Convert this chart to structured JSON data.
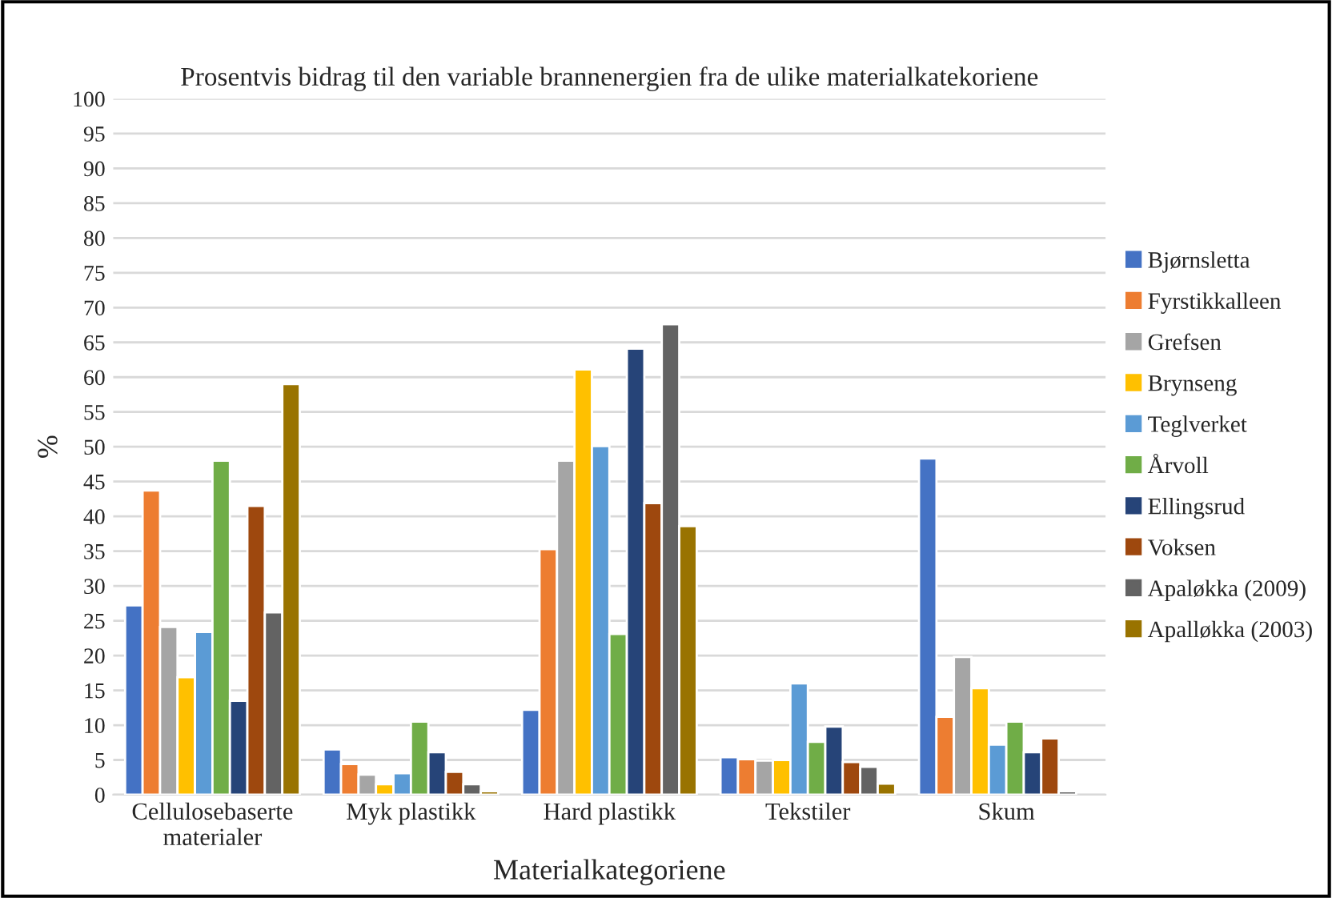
{
  "chart_data": {
    "type": "bar",
    "title": "Prosentvis bidrag til den variable brannenergien fra de ulike materialkatekoriene",
    "xlabel": "Materialkategoriene",
    "ylabel": "%",
    "categories": [
      "Cellulosebaserte\nmaterialer",
      "Myk plastikk",
      "Hard plastikk",
      "Tekstiler",
      "Skum"
    ],
    "series": [
      {
        "name": "Bjørnsletta",
        "color": "#4472c4",
        "values": [
          27.2,
          6.5,
          12.2,
          5.4,
          48.3
        ]
      },
      {
        "name": "Fyrstikkalleen",
        "color": "#ed7d31",
        "values": [
          43.7,
          4.4,
          35.3,
          5.1,
          11.2
        ]
      },
      {
        "name": "Grefsen",
        "color": "#a5a5a5",
        "values": [
          24.1,
          2.9,
          48,
          4.9,
          19.8
        ]
      },
      {
        "name": "Brynseng",
        "color": "#ffc000",
        "values": [
          16.9,
          1.5,
          61.1,
          5,
          15.3
        ]
      },
      {
        "name": "Teglverket",
        "color": "#5b9bd5",
        "values": [
          23.4,
          3.1,
          50.1,
          16,
          7.2
        ]
      },
      {
        "name": "Årvoll",
        "color": "#70ad47",
        "values": [
          48,
          10.5,
          23.1,
          7.6,
          10.5
        ]
      },
      {
        "name": "Ellingsrud",
        "color": "#264478",
        "values": [
          13.5,
          6.1,
          64.1,
          9.8,
          6.1
        ]
      },
      {
        "name": "Voksen",
        "color": "#9e480e",
        "values": [
          41.5,
          3.3,
          41.9,
          4.7,
          8.1
        ]
      },
      {
        "name": "Apaløkka (2009)",
        "color": "#636363",
        "values": [
          26.2,
          1.5,
          67.6,
          4,
          0.5
        ]
      },
      {
        "name": "Apalløkka (2003)",
        "color": "#997300",
        "values": [
          59,
          0.5,
          38.6,
          1.6,
          null
        ]
      }
    ],
    "ylim": [
      0,
      100
    ],
    "yticks": [
      0,
      5,
      10,
      15,
      20,
      25,
      30,
      35,
      40,
      45,
      50,
      55,
      60,
      65,
      70,
      75,
      80,
      85,
      90,
      95,
      100
    ],
    "grid": "y",
    "legend": "right"
  }
}
